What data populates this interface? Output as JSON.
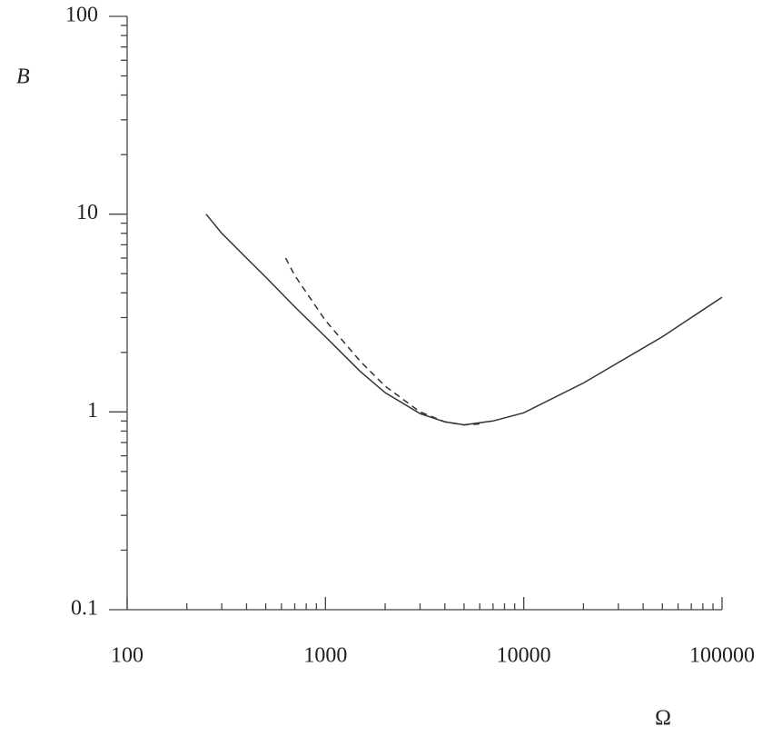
{
  "chart_data": {
    "type": "line",
    "x_label": "Ω",
    "y_label": "B",
    "xscale": "log",
    "yscale": "log",
    "xlim": [
      100,
      100000
    ],
    "ylim": [
      0.1,
      100
    ],
    "xticks": [
      100,
      1000,
      10000,
      100000
    ],
    "yticks": [
      0.1,
      1,
      10,
      100
    ],
    "series": [
      {
        "color": "#333333",
        "dash": false,
        "x": [
          250,
          300,
          400,
          500,
          700,
          1000,
          1500,
          2000,
          3000,
          4000,
          5000,
          7000,
          10000,
          20000,
          50000,
          100000
        ],
        "values": [
          10,
          8.0,
          6.0,
          4.8,
          3.4,
          2.4,
          1.6,
          1.25,
          0.98,
          0.89,
          0.86,
          0.9,
          0.99,
          1.4,
          2.4,
          3.8
        ]
      },
      {
        "color": "#333333",
        "dash": true,
        "x": [
          630,
          700,
          1000,
          1500,
          2000,
          3000,
          4000,
          5000,
          6000
        ],
        "values": [
          6.0,
          4.9,
          2.9,
          1.8,
          1.35,
          1.0,
          0.89,
          0.86,
          0.87
        ]
      }
    ]
  }
}
